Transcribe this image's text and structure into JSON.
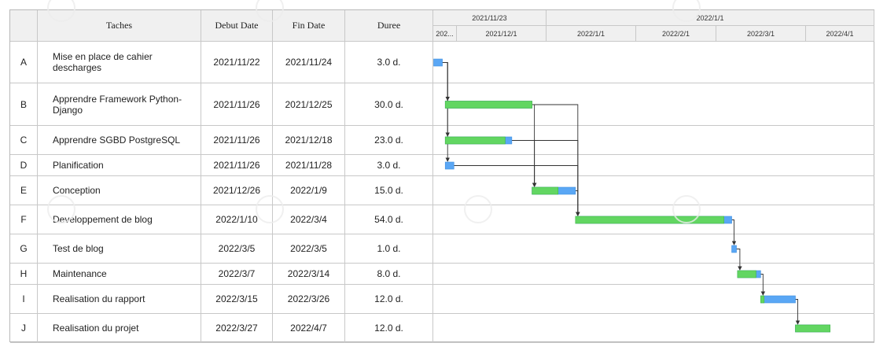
{
  "chart_data": {
    "type": "gantt",
    "columns": {
      "id": "",
      "task": "Taches",
      "start": "Debut Date",
      "end": "Fin Date",
      "duration": "Duree"
    },
    "timeline_top": [
      "2021/11/23",
      "2022/1/1"
    ],
    "timeline_sub": [
      "202...",
      "2021/12/1",
      "2022/1/1",
      "2022/2/1",
      "2022/3/1",
      "2022/4/1"
    ],
    "tasks": [
      {
        "id": "A",
        "name": "Mise en place de cahier descharges",
        "start": "2021/11/22",
        "end": "2021/11/24",
        "duration": "3.0 d.",
        "progress": 0.0
      },
      {
        "id": "B",
        "name": "Apprendre Framework Python-Django",
        "start": "2021/11/26",
        "end": "2021/12/25",
        "duration": "30.0 d.",
        "progress": 1.0
      },
      {
        "id": "C",
        "name": "Apprendre SGBD PostgreSQL",
        "start": "2021/11/26",
        "end": "2021/12/18",
        "duration": "23.0 d.",
        "progress": 0.9
      },
      {
        "id": "D",
        "name": "Planification",
        "start": "2021/11/26",
        "end": "2021/11/28",
        "duration": "3.0 d.",
        "progress": 0.0
      },
      {
        "id": "E",
        "name": "Conception",
        "start": "2021/12/26",
        "end": "2022/1/9",
        "duration": "15.0 d.",
        "progress": 0.6
      },
      {
        "id": "F",
        "name": "Developpement de blog",
        "start": "2022/1/10",
        "end": "2022/3/4",
        "duration": "54.0 d.",
        "progress": 0.95
      },
      {
        "id": "G",
        "name": "Test de blog",
        "start": "2022/3/5",
        "end": "2022/3/5",
        "duration": "1.0 d.",
        "progress": 0.0
      },
      {
        "id": "H",
        "name": "Maintenance",
        "start": "2022/3/7",
        "end": "2022/3/14",
        "duration": "8.0 d.",
        "progress": 0.8
      },
      {
        "id": "I",
        "name": "Realisation du rapport",
        "start": "2022/3/15",
        "end": "2022/3/26",
        "duration": "12.0 d.",
        "progress": 0.1
      },
      {
        "id": "J",
        "name": "Realisation du projet",
        "start": "2022/3/27",
        "end": "2022/4/7",
        "duration": "12.0 d.",
        "progress": 1.0
      }
    ],
    "dependencies": [
      [
        "A",
        "B"
      ],
      [
        "A",
        "C"
      ],
      [
        "A",
        "D"
      ],
      [
        "B",
        "E"
      ],
      [
        "C",
        "E"
      ],
      [
        "D",
        "E"
      ],
      [
        "B",
        "F"
      ],
      [
        "C",
        "F"
      ],
      [
        "D",
        "F"
      ],
      [
        "E",
        "F"
      ],
      [
        "F",
        "G"
      ],
      [
        "G",
        "H"
      ],
      [
        "H",
        "I"
      ],
      [
        "I",
        "J"
      ]
    ],
    "colors": {
      "progress": "#62d662",
      "remaining": "#5aa7f5",
      "link": "#333333",
      "grid": "#c8c8c8",
      "header_bg": "#f0f0f0"
    }
  }
}
